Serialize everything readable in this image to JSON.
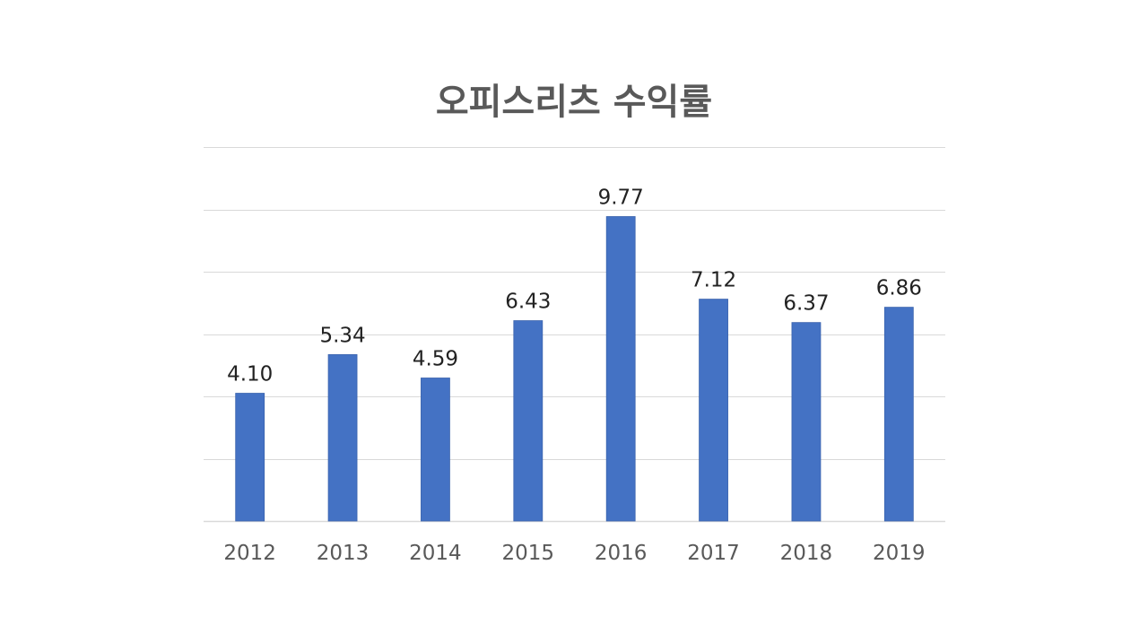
{
  "chart_data": {
    "type": "bar",
    "title": "오피스리츠 수익률",
    "categories": [
      "2012",
      "2013",
      "2014",
      "2015",
      "2016",
      "2017",
      "2018",
      "2019"
    ],
    "series": [
      {
        "values": [
          4.1,
          5.34,
          4.59,
          6.43,
          9.77,
          7.12,
          6.37,
          6.86
        ]
      }
    ],
    "data_labels": [
      "4.10",
      "5.34",
      "4.59",
      "6.43",
      "9.77",
      "7.12",
      "6.37",
      "6.86"
    ],
    "xlabel": "",
    "ylabel": "",
    "ylim": [
      0,
      12
    ],
    "y_gridlines": [
      0,
      2,
      4,
      6,
      8,
      10,
      12
    ],
    "y_tick_labels_visible": false,
    "grid": true,
    "legend": "none",
    "colors": {
      "bar": "#4472c4",
      "grid": "#d9d9d9",
      "title": "#595959"
    }
  }
}
